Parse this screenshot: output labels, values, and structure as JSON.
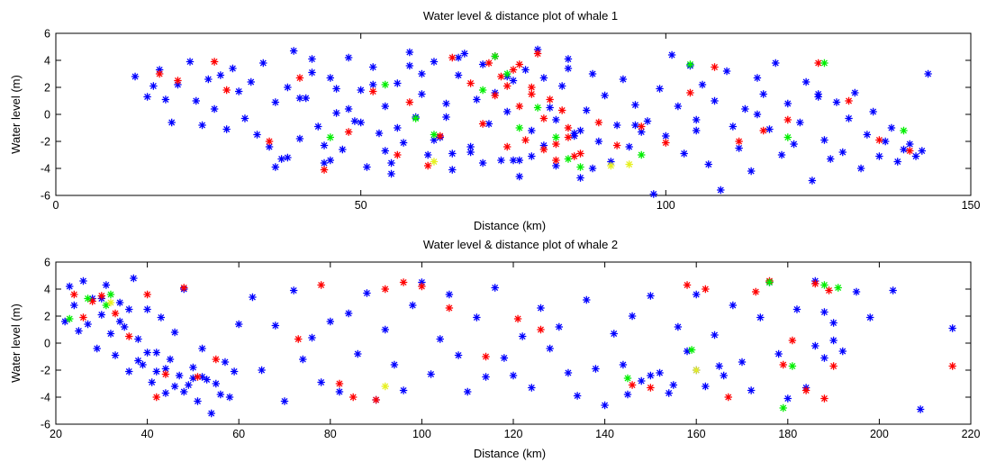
{
  "colors": {
    "blue": "#0000ff",
    "red": "#ff0000",
    "green": "#00ee00",
    "yellow": "#e6f020"
  },
  "marker": "asterisk",
  "chart_data": [
    {
      "type": "scatter",
      "title": "Water level & distance plot of whale 1",
      "xlabel": "Distance (km)",
      "ylabel": "Water level (m)",
      "xlim": [
        0,
        150
      ],
      "ylim": [
        -6,
        6
      ],
      "xticks": [
        0,
        50,
        100,
        150
      ],
      "yticks": [
        -6,
        -4,
        -2,
        0,
        2,
        4,
        6
      ],
      "grid": false,
      "series": [
        {
          "color": "blue",
          "x": [
            13,
            15,
            16,
            17,
            18,
            19,
            20,
            22,
            23,
            24,
            25,
            26,
            27,
            28,
            29,
            30,
            31,
            32,
            33,
            34,
            35,
            36,
            37,
            38,
            39,
            40,
            41,
            42,
            43,
            44,
            45,
            46,
            47,
            48,
            49,
            50,
            51,
            52,
            53,
            54,
            55,
            56,
            57,
            58,
            59,
            60,
            61,
            62,
            63,
            64,
            65,
            66,
            67,
            68,
            69,
            70,
            71,
            72,
            73,
            74,
            75,
            76,
            77,
            78,
            79,
            80,
            81,
            82,
            83,
            84,
            85,
            86,
            87,
            88,
            89,
            90,
            91,
            92,
            93,
            94,
            95,
            96,
            97,
            98,
            99,
            100,
            101,
            102,
            103,
            104,
            105,
            106,
            107,
            108,
            109,
            110,
            111,
            112,
            113,
            114,
            115,
            116,
            117,
            118,
            119,
            120,
            121,
            122,
            123,
            124,
            125,
            126,
            127,
            128,
            129,
            130,
            131,
            132,
            133,
            134,
            135,
            136,
            137,
            138,
            139,
            140,
            141,
            142,
            143,
            38,
            42,
            46,
            50,
            54,
            58,
            62,
            66,
            70,
            74,
            78,
            82,
            86,
            40,
            44,
            48,
            52,
            56,
            60,
            64,
            68,
            72,
            76,
            80,
            84,
            88,
            36,
            45,
            55,
            65,
            75,
            85,
            95,
            105,
            115,
            125
          ],
          "y": [
            2.8,
            1.3,
            2.1,
            3.3,
            1.1,
            -0.6,
            2.2,
            3.9,
            1.0,
            -0.8,
            2.6,
            0.4,
            2.9,
            -1.1,
            3.4,
            1.7,
            -0.3,
            2.4,
            -1.5,
            3.8,
            -2.4,
            0.9,
            -3.3,
            2.0,
            4.7,
            -1.8,
            1.2,
            3.1,
            -0.9,
            -3.6,
            2.7,
            0.1,
            -2.6,
            4.2,
            -0.5,
            1.8,
            -3.9,
            3.5,
            -1.4,
            0.6,
            -4.4,
            2.3,
            -2.1,
            4.6,
            -0.2,
            1.5,
            -3.0,
            3.9,
            -1.7,
            0.8,
            -4.1,
            2.9,
            4.5,
            -2.8,
            1.1,
            3.7,
            -0.7,
            4.3,
            -3.4,
            0.2,
            2.5,
            -4.6,
            3.3,
            -1.2,
            4.8,
            -2.3,
            0.5,
            -3.8,
            2.1,
            4.1,
            -1.6,
            -4.7,
            0.3,
            3.0,
            -2.0,
            1.4,
            -3.5,
            -0.8,
            2.6,
            -2.4,
            0.7,
            -1.3,
            -0.5,
            -5.9,
            1.9,
            -1.6,
            4.4,
            0.6,
            -2.9,
            3.6,
            -0.4,
            2.2,
            -3.7,
            1.0,
            -5.6,
            3.2,
            -0.9,
            -2.5,
            0.4,
            -4.2,
            2.7,
            1.5,
            -1.1,
            3.8,
            -3.0,
            0.8,
            -2.2,
            -0.6,
            2.4,
            -4.9,
            1.3,
            -1.9,
            -3.3,
            0.9,
            -2.8,
            -0.3,
            1.6,
            -4.0,
            -1.5,
            0.2,
            -3.1,
            -2.0,
            -1.0,
            -3.5,
            -2.6,
            -2.2,
            -3.1,
            -2.7,
            3.0,
            -3.2,
            4.1,
            1.9,
            -0.6,
            -2.7,
            3.6,
            -1.9,
            4.2,
            -3.6,
            2.8,
            -3.1,
            -0.4,
            -1.2,
            1.2,
            -2.3,
            0.4,
            2.2,
            -1.0,
            3.0,
            -0.2,
            -2.4,
            1.6,
            -3.4,
            2.7,
            3.4,
            -4.0,
            -3.9,
            -3.4,
            -3.6,
            -2.9,
            -3.4,
            -1.4,
            -0.8,
            -1.2,
            0.0,
            1.5
          ]
        },
        {
          "color": "red",
          "x": [
            17,
            20,
            26,
            28,
            35,
            40,
            44,
            48,
            52,
            56,
            58,
            61,
            63,
            65,
            68,
            70,
            71,
            72,
            73,
            74,
            75,
            76,
            77,
            78,
            79,
            80,
            81,
            82,
            83,
            84,
            85,
            72,
            74,
            76,
            78,
            80,
            82,
            84,
            86,
            89,
            92,
            96,
            100,
            104,
            108,
            112,
            116,
            120,
            125,
            130,
            135,
            140
          ],
          "y": [
            3.0,
            2.5,
            3.9,
            1.8,
            -2.0,
            2.7,
            -4.1,
            -1.3,
            1.7,
            -3.0,
            0.9,
            -3.8,
            -1.6,
            4.2,
            2.3,
            -0.7,
            3.8,
            1.4,
            2.8,
            -2.4,
            3.3,
            0.6,
            -1.9,
            2.0,
            4.5,
            -2.6,
            1.1,
            -3.4,
            0.3,
            -1.0,
            -3.1,
            4.3,
            2.1,
            3.7,
            1.5,
            -0.3,
            -2.2,
            -1.7,
            -2.9,
            -0.6,
            -2.3,
            -0.9,
            -2.1,
            1.6,
            3.5,
            -2.0,
            -1.2,
            -0.4,
            3.8,
            1.0,
            -1.9,
            -2.7
          ]
        },
        {
          "color": "green",
          "x": [
            45,
            54,
            59,
            62,
            70,
            72,
            74,
            76,
            79,
            82,
            84,
            86,
            96,
            104,
            120,
            126,
            139
          ],
          "y": [
            -1.7,
            2.2,
            -0.3,
            -1.5,
            1.8,
            4.3,
            3.0,
            -1.0,
            0.5,
            -1.7,
            -3.3,
            -3.9,
            -3.0,
            3.7,
            -1.7,
            3.8,
            -1.2
          ]
        },
        {
          "color": "yellow",
          "x": [
            62,
            91,
            94
          ],
          "y": [
            -3.5,
            -3.8,
            -3.7
          ]
        }
      ]
    },
    {
      "type": "scatter",
      "title": "Water level & distance  plot of whale 2",
      "xlabel": "Distance (km)",
      "ylabel": "Water level (m)",
      "xlim": [
        20,
        220
      ],
      "ylim": [
        -6,
        6
      ],
      "xticks": [
        20,
        40,
        60,
        80,
        100,
        120,
        140,
        160,
        180,
        200,
        220
      ],
      "yticks": [
        -6,
        -4,
        -2,
        0,
        2,
        4,
        6
      ],
      "grid": false,
      "series": [
        {
          "color": "blue",
          "x": [
            22,
            23,
            24,
            25,
            26,
            27,
            28,
            29,
            30,
            31,
            32,
            33,
            34,
            35,
            36,
            37,
            38,
            39,
            40,
            41,
            42,
            43,
            44,
            45,
            46,
            47,
            48,
            49,
            50,
            51,
            52,
            53,
            54,
            55,
            56,
            57,
            58,
            59,
            60,
            63,
            65,
            68,
            70,
            72,
            74,
            76,
            78,
            80,
            82,
            84,
            86,
            88,
            90,
            92,
            94,
            96,
            98,
            100,
            102,
            104,
            106,
            108,
            110,
            112,
            114,
            116,
            118,
            120,
            122,
            124,
            126,
            128,
            130,
            132,
            134,
            136,
            138,
            140,
            142,
            144,
            146,
            148,
            150,
            152,
            154,
            156,
            158,
            160,
            162,
            164,
            166,
            168,
            170,
            172,
            174,
            176,
            178,
            180,
            182,
            184,
            186,
            188,
            190,
            192,
            195,
            198,
            203,
            209,
            216,
            30,
            34,
            38,
            42,
            46,
            50,
            36,
            40,
            44,
            48,
            52,
            145,
            150,
            155,
            160,
            165,
            186,
            188,
            190
          ],
          "y": [
            1.6,
            4.2,
            2.8,
            0.9,
            4.6,
            1.4,
            3.3,
            -0.4,
            2.1,
            4.3,
            0.7,
            -0.9,
            3.0,
            1.2,
            -2.1,
            4.8,
            0.3,
            -1.6,
            2.5,
            -2.9,
            -0.7,
            1.9,
            -3.7,
            -1.2,
            0.8,
            -2.4,
            4.0,
            -3.1,
            -1.8,
            -4.3,
            -0.4,
            -2.7,
            -5.2,
            -3.0,
            -3.8,
            -1.4,
            -4.0,
            -2.1,
            1.4,
            3.4,
            -2.0,
            1.3,
            -4.3,
            3.9,
            -1.2,
            0.4,
            -2.9,
            1.6,
            -3.6,
            2.2,
            -0.8,
            3.7,
            -4.2,
            1.0,
            -1.6,
            -3.5,
            2.8,
            4.5,
            -2.3,
            0.3,
            3.6,
            -0.9,
            -3.6,
            1.9,
            -2.5,
            4.1,
            -1.1,
            -2.4,
            0.5,
            -3.3,
            2.6,
            -0.4,
            1.2,
            -2.2,
            -3.9,
            3.2,
            -1.9,
            -4.6,
            0.7,
            -1.6,
            2.0,
            -2.8,
            3.5,
            -2.2,
            -3.7,
            1.2,
            -0.6,
            3.6,
            -3.2,
            0.6,
            -2.4,
            2.8,
            -1.4,
            -3.5,
            1.9,
            4.5,
            -0.8,
            -4.1,
            2.5,
            -3.3,
            4.6,
            -1.1,
            0.2,
            -0.6,
            3.8,
            1.9,
            3.9,
            -4.9,
            1.1,
            3.3,
            1.6,
            -1.3,
            -2.1,
            -3.2,
            -2.6,
            2.5,
            -0.7,
            -1.9,
            -3.6,
            -2.5,
            -3.8,
            -2.4,
            -3.1,
            -2.0,
            -1.7,
            -0.2,
            2.3,
            1.5
          ]
        },
        {
          "color": "red",
          "x": [
            24,
            26,
            28,
            30,
            33,
            36,
            40,
            42,
            44,
            48,
            51,
            55,
            73,
            78,
            82,
            85,
            90,
            92,
            96,
            100,
            106,
            114,
            121,
            126,
            146,
            150,
            158,
            162,
            167,
            173,
            176,
            179,
            181,
            184,
            186,
            188,
            189,
            190,
            216
          ],
          "y": [
            3.6,
            1.9,
            3.1,
            3.5,
            2.2,
            0.5,
            3.6,
            -4.0,
            -2.3,
            4.1,
            -2.5,
            -1.2,
            0.3,
            4.3,
            -3.0,
            -4.0,
            -4.2,
            4.0,
            4.5,
            4.2,
            2.6,
            -1.0,
            1.8,
            1.0,
            -3.1,
            -3.3,
            4.3,
            4.0,
            -4.0,
            3.8,
            4.6,
            -1.6,
            0.2,
            -3.5,
            4.4,
            -4.1,
            3.9,
            -1.7,
            -1.7
          ]
        },
        {
          "color": "green",
          "x": [
            23,
            27,
            31,
            32,
            145,
            159,
            176,
            179,
            181,
            188,
            191
          ],
          "y": [
            1.8,
            3.3,
            2.8,
            3.6,
            -2.6,
            -0.5,
            4.5,
            -4.8,
            -1.7,
            4.3,
            4.1
          ]
        },
        {
          "color": "yellow",
          "x": [
            32,
            92,
            160
          ],
          "y": [
            3.0,
            -3.2,
            -2.0
          ]
        }
      ]
    }
  ]
}
